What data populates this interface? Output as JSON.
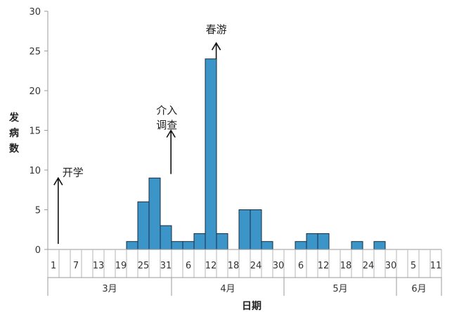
{
  "chart_data": {
    "type": "bar",
    "xlabel": "日期",
    "ylabel": "发病数",
    "ylim": [
      0,
      30
    ],
    "yticks": [
      0,
      5,
      10,
      15,
      20,
      25,
      30
    ],
    "grid": false,
    "series_color": "#3b95c9",
    "bar_edge_color": "#1b2a3a",
    "x_tick_labels": [
      {
        "label": "1",
        "slot": 0
      },
      {
        "label": "7",
        "slot": 2
      },
      {
        "label": "13",
        "slot": 4
      },
      {
        "label": "19",
        "slot": 6
      },
      {
        "label": "25",
        "slot": 8
      },
      {
        "label": "31",
        "slot": 10
      },
      {
        "label": "6",
        "slot": 12
      },
      {
        "label": "12",
        "slot": 14
      },
      {
        "label": "18",
        "slot": 16
      },
      {
        "label": "24",
        "slot": 18
      },
      {
        "label": "30",
        "slot": 20
      },
      {
        "label": "6",
        "slot": 22
      },
      {
        "label": "12",
        "slot": 24
      },
      {
        "label": "18",
        "slot": 26
      },
      {
        "label": "24",
        "slot": 28
      },
      {
        "label": "30",
        "slot": 30
      },
      {
        "label": "5",
        "slot": 32
      },
      {
        "label": "11",
        "slot": 34
      }
    ],
    "months": [
      {
        "label": "3月",
        "start_slot": 0,
        "end_slot": 11
      },
      {
        "label": "4月",
        "start_slot": 11,
        "end_slot": 21
      },
      {
        "label": "5月",
        "start_slot": 21,
        "end_slot": 31
      },
      {
        "label": "6月",
        "start_slot": 31,
        "end_slot": 35
      }
    ],
    "slot_count": 35,
    "values": [
      0,
      0,
      0,
      0,
      0,
      0,
      0,
      1,
      6,
      9,
      3,
      1,
      1,
      2,
      24,
      2,
      0,
      5,
      5,
      1,
      0,
      0,
      1,
      2,
      2,
      0,
      0,
      1,
      0,
      1,
      0,
      0,
      0,
      0,
      0
    ],
    "annotations": [
      {
        "text": "开学",
        "slot": 0.3,
        "arrow_from": 0.7,
        "arrow_to": 9
      },
      {
        "text": "介入调查",
        "lines": [
          "介入",
          "调查"
        ],
        "slot": 10.7,
        "arrow_from": 9.5,
        "arrow_to": 15
      },
      {
        "text": "春游",
        "slot": 14.6,
        "arrow_from": 24,
        "arrow_to": 26
      }
    ]
  }
}
